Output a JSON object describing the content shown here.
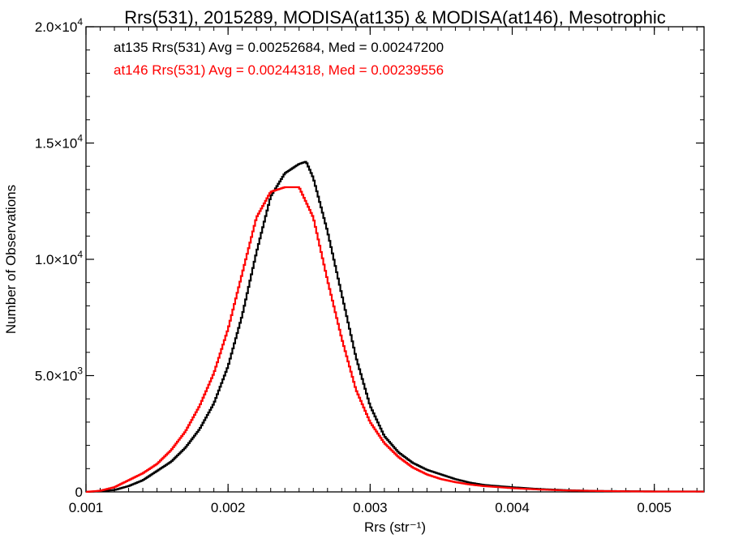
{
  "chart_data": {
    "type": "line",
    "title": "Rrs(531), 2015289, MODISA(at135) & MODISA(at146), Mesotrophic",
    "xlabel": "Rrs (str⁻¹)",
    "ylabel": "Number of Observations",
    "xlim": [
      0.001,
      0.00535
    ],
    "ylim": [
      0,
      20000
    ],
    "x_ticks": [
      {
        "value": 0.001,
        "label": "0.001"
      },
      {
        "value": 0.002,
        "label": "0.002"
      },
      {
        "value": 0.003,
        "label": "0.003"
      },
      {
        "value": 0.004,
        "label": "0.004"
      },
      {
        "value": 0.005,
        "label": "0.005"
      }
    ],
    "y_ticks": [
      {
        "value": 0,
        "mantissa": "0",
        "exp": ""
      },
      {
        "value": 5000,
        "mantissa": "5.0×10",
        "exp": "3"
      },
      {
        "value": 10000,
        "mantissa": "1.0×10",
        "exp": "4"
      },
      {
        "value": 15000,
        "mantissa": "1.5×10",
        "exp": "4"
      },
      {
        "value": 20000,
        "mantissa": "2.0×10",
        "exp": "4"
      }
    ],
    "grid": false,
    "step": true,
    "annotations": [
      {
        "text": "at135 Rrs(531) Avg = 0.00252684, Med = 0.00247200",
        "color": "#000000"
      },
      {
        "text": "at146 Rrs(531) Avg = 0.00244318, Med = 0.00239556",
        "color": "#ff0000"
      }
    ],
    "series": [
      {
        "color": "#000000",
        "x": [
          0.001,
          0.0011,
          0.0012,
          0.0013,
          0.0014,
          0.0015,
          0.0016,
          0.0017,
          0.0018,
          0.0019,
          0.002,
          0.0021,
          0.0022,
          0.0023,
          0.0024,
          0.0025,
          0.00255,
          0.0026,
          0.0027,
          0.0028,
          0.0029,
          0.003,
          0.0031,
          0.0032,
          0.0033,
          0.0034,
          0.0035,
          0.0036,
          0.0037,
          0.0038,
          0.004,
          0.0042,
          0.0044,
          0.0046,
          0.0048,
          0.005,
          0.00535
        ],
        "y": [
          0,
          30,
          80,
          250,
          500,
          900,
          1300,
          1900,
          2700,
          3800,
          5400,
          7600,
          10300,
          12700,
          13700,
          14100,
          14200,
          13500,
          11200,
          8500,
          5800,
          3700,
          2400,
          1700,
          1250,
          950,
          750,
          550,
          400,
          300,
          200,
          120,
          70,
          40,
          30,
          20,
          20
        ]
      },
      {
        "color": "#ff0000",
        "x": [
          0.001,
          0.0011,
          0.0012,
          0.0013,
          0.0014,
          0.0015,
          0.0016,
          0.0017,
          0.0018,
          0.0019,
          0.002,
          0.0021,
          0.0022,
          0.0023,
          0.0024,
          0.0025,
          0.0026,
          0.0027,
          0.0028,
          0.0029,
          0.003,
          0.0031,
          0.0032,
          0.0033,
          0.0034,
          0.0035,
          0.0036,
          0.0037,
          0.0038,
          0.004,
          0.0042,
          0.0044,
          0.0046,
          0.0048,
          0.005,
          0.00535
        ],
        "y": [
          0,
          50,
          200,
          500,
          800,
          1200,
          1800,
          2600,
          3700,
          5100,
          7000,
          9400,
          11800,
          12900,
          13100,
          13100,
          11800,
          9100,
          6600,
          4400,
          3000,
          2100,
          1500,
          1050,
          750,
          550,
          420,
          320,
          250,
          160,
          100,
          60,
          40,
          25,
          15,
          15
        ]
      }
    ]
  }
}
